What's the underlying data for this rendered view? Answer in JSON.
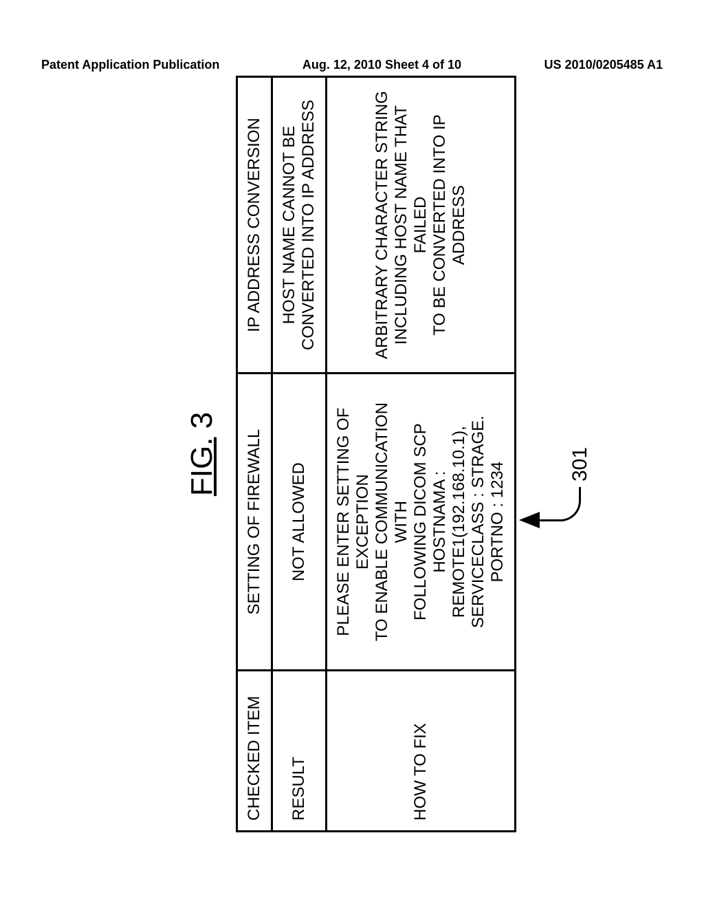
{
  "header": {
    "left": "Patent Application Publication",
    "center": "Aug. 12, 2010  Sheet 4 of 10",
    "right": "US 2010/0205485 A1"
  },
  "figure": {
    "prefix": "FIG.",
    "number": " 3",
    "callout_ref": "301"
  },
  "table": {
    "rows": [
      {
        "header": "CHECKED ITEM",
        "col1": "SETTING OF FIREWALL",
        "col2": "IP ADDRESS CONVERSION"
      },
      {
        "header": "RESULT",
        "col1": "NOT ALLOWED",
        "col2": "HOST NAME CANNOT BE\nCONVERTED INTO IP ADDRESS"
      },
      {
        "header": "HOW TO FIX",
        "col1": "PLEASE ENTER SETTING OF EXCEPTION\nTO ENABLE COMMUNICATION WITH\nFOLLOWING DICOM SCP\nHOSTNAMA : REMOTE1(192.168.10.1),\nSERVICECLASS : STRAGE. PORTNO : 1234",
        "col2": "ARBITRARY CHARACTER STRING\nINCLUDING HOST NAME THAT FAILED\nTO BE CONVERTED INTO IP ADDRESS"
      }
    ]
  }
}
